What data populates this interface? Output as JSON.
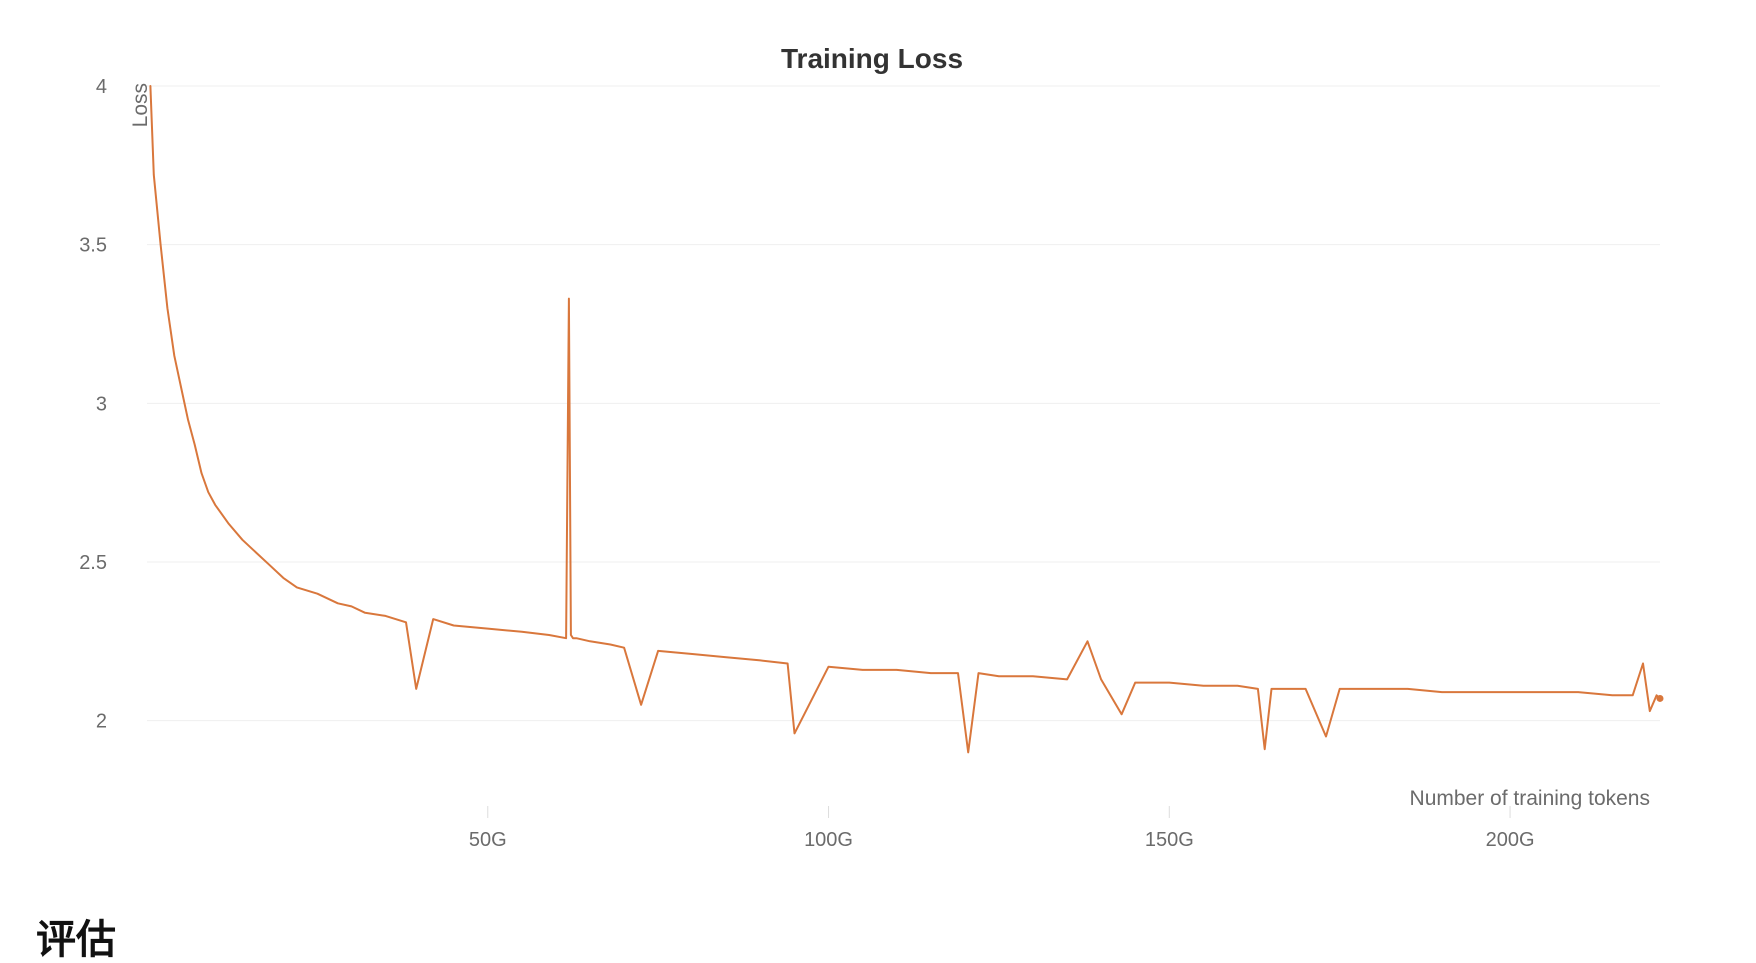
{
  "page": {
    "section_heading": "评估"
  },
  "colors": {
    "series": "#d9773c",
    "grid": "#efefef",
    "tick_text": "#6b6b6b",
    "title_text": "#333333"
  },
  "chart_data": {
    "type": "line",
    "title": "Training Loss",
    "xlabel": "Number of training tokens",
    "ylabel": "Loss",
    "xlim": [
      0,
      222
    ],
    "ylim": [
      1.75,
      4.0
    ],
    "x_unit": "G tokens",
    "grid": true,
    "legend": "none",
    "x_ticks": [
      {
        "value": 50,
        "label": "50G"
      },
      {
        "value": 100,
        "label": "100G"
      },
      {
        "value": 150,
        "label": "150G"
      },
      {
        "value": 200,
        "label": "200G"
      }
    ],
    "y_ticks": [
      {
        "value": 2,
        "label": "2"
      },
      {
        "value": 2.5,
        "label": "2.5"
      },
      {
        "value": 3,
        "label": "3"
      },
      {
        "value": 3.5,
        "label": "3.5"
      },
      {
        "value": 4,
        "label": "4"
      }
    ],
    "series": [
      {
        "name": "",
        "x": [
          0.5,
          1,
          2,
          3,
          4,
          5,
          6,
          7,
          8,
          9,
          10,
          12,
          14,
          16,
          18,
          20,
          22,
          25,
          28,
          30,
          32,
          35,
          38,
          39.5,
          42,
          45,
          50,
          55,
          59,
          61.5,
          61.9,
          62.2,
          62.5,
          63,
          65,
          68,
          70,
          72.5,
          75,
          80,
          85,
          90,
          94,
          95,
          100,
          105,
          110,
          115,
          119,
          120.5,
          122,
          125,
          130,
          135,
          138,
          140,
          143,
          145,
          150,
          155,
          160,
          163,
          164,
          165,
          170,
          173,
          175,
          180,
          185,
          190,
          195,
          200,
          205,
          210,
          215,
          218,
          219.5,
          220.5,
          221.5,
          222
        ],
        "y": [
          4.0,
          3.72,
          3.5,
          3.3,
          3.15,
          3.05,
          2.95,
          2.87,
          2.78,
          2.72,
          2.68,
          2.62,
          2.57,
          2.53,
          2.49,
          2.45,
          2.42,
          2.4,
          2.37,
          2.36,
          2.34,
          2.33,
          2.31,
          2.1,
          2.32,
          2.3,
          2.29,
          2.28,
          2.27,
          2.26,
          3.33,
          2.27,
          2.26,
          2.26,
          2.25,
          2.24,
          2.23,
          2.05,
          2.22,
          2.21,
          2.2,
          2.19,
          2.18,
          1.96,
          2.17,
          2.16,
          2.16,
          2.15,
          2.15,
          1.9,
          2.15,
          2.14,
          2.14,
          2.13,
          2.25,
          2.13,
          2.02,
          2.12,
          2.12,
          2.11,
          2.11,
          2.1,
          1.91,
          2.1,
          2.1,
          1.95,
          2.1,
          2.1,
          2.1,
          2.09,
          2.09,
          2.09,
          2.09,
          2.09,
          2.08,
          2.08,
          2.18,
          2.03,
          2.08,
          2.07
        ]
      }
    ]
  }
}
